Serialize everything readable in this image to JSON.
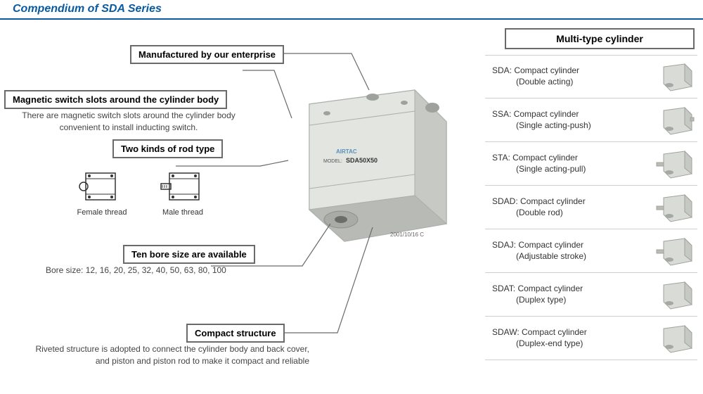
{
  "colors": {
    "title_text": "#0a5aa0",
    "title_underline": "#0a5aa0",
    "callout_border": "#6a6a6a",
    "leader": "#6a6a6a",
    "side_border": "#cfcfcf",
    "body_text": "#333333",
    "thumb_body": "#d9dbd7",
    "thumb_stroke": "#9fa39b",
    "product_body": "#dfe1dd",
    "product_edge": "#acafab",
    "product_shadow": "#9ea19b"
  },
  "title": "Compendium of SDA Series",
  "callouts": {
    "manufactured": {
      "label": "Manufactured by our enterprise"
    },
    "magnetic": {
      "label": "Magnetic switch slots around the cylinder body",
      "sub": "There are magnetic switch slots around the cylinder body convenient to install inducting switch."
    },
    "rod": {
      "label": "Two kinds of rod type",
      "female": "Female thread",
      "male": "Male thread"
    },
    "bore": {
      "label": "Ten bore size are available",
      "sub": "Bore size: 12, 16, 20, 25, 32, 40, 50, 63, 80, 100"
    },
    "compact": {
      "label": "Compact structure",
      "sub": "Riveted structure is adopted to connect the cylinder body and back cover, and piston and piston rod to make it compact and reliable"
    }
  },
  "product": {
    "brand": "AIRTAC",
    "model_prefix": "MODEL:",
    "model": "SDA50X50",
    "date": "2001/10/16 C"
  },
  "side": {
    "header": "Multi-type cylinder",
    "items": [
      {
        "code": "SDA:",
        "name": "Compact cylinder",
        "desc": "(Double acting)"
      },
      {
        "code": "SSA:",
        "name": "Compact cylinder",
        "desc": "(Single acting-push)"
      },
      {
        "code": "STA:",
        "name": "Compact cylinder",
        "desc": "(Single acting-pull)"
      },
      {
        "code": "SDAD:",
        "name": "Compact cylinder",
        "desc": "(Double rod)"
      },
      {
        "code": "SDAJ:",
        "name": "Compact cylinder",
        "desc": "(Adjustable stroke)"
      },
      {
        "code": "SDAT:",
        "name": "Compact cylinder",
        "desc": "(Duplex type)"
      },
      {
        "code": "SDAW:",
        "name": "Compact cylinder",
        "desc": "(Duplex-end type)"
      }
    ]
  }
}
